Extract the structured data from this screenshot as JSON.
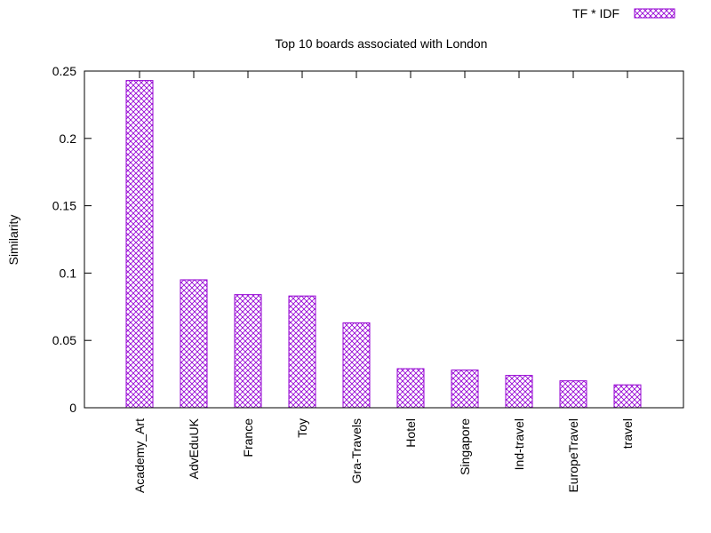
{
  "chart_data": {
    "type": "bar",
    "title": "Top 10 boards associated with London",
    "xlabel": "",
    "ylabel": "Similarity",
    "categories": [
      "Academy_Art",
      "AdvEduUK",
      "France",
      "Toy",
      "Gra-Travels",
      "Hotel",
      "Singapore",
      "Ind-travel",
      "EuropeTravel",
      "travel"
    ],
    "series": [
      {
        "name": "TF * IDF",
        "values": [
          0.243,
          0.095,
          0.084,
          0.083,
          0.063,
          0.029,
          0.028,
          0.024,
          0.02,
          0.017
        ]
      }
    ],
    "ylim": [
      0,
      0.25
    ],
    "yticks": [
      "0",
      "0.05",
      "0.1",
      "0.15",
      "0.2",
      "0.25"
    ],
    "grid": false,
    "legend": "top-right",
    "bar_color": "#9400d3",
    "fill_pattern": "crosshatch"
  }
}
